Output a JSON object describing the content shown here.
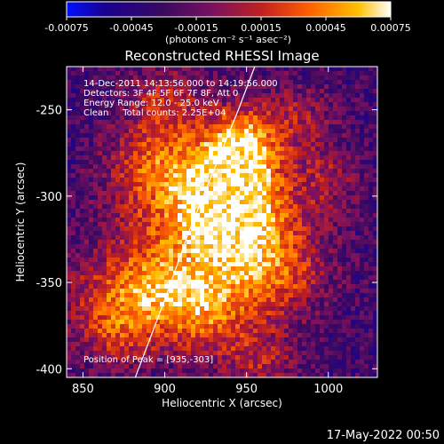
{
  "colorbar": {
    "tick_labels": [
      "-0.00075",
      "-0.00045",
      "-0.00015",
      "0.00015",
      "0.00045",
      "0.00075"
    ],
    "unit_label": "(photons cm⁻² s⁻¹ asec⁻²)",
    "range": [
      -0.00075,
      0.00075
    ]
  },
  "plot": {
    "title": "Reconstructed RHESSI Image",
    "info_lines": [
      "14-Dec-2011 14:13:56.000 to 14:19:56.000",
      "Detectors: 3F 4F 5F 6F 7F 8F, Att 0",
      "Energy Range: 12.0 - 25.0 keV",
      "Clean     Total counts: 2.25E+04"
    ],
    "peak_text": "Position of Peak = [935,-303]"
  },
  "footer": {
    "timestamp": "17-May-2022 00:50"
  },
  "chart_data": {
    "type": "heatmap",
    "title": "Reconstructed RHESSI Image",
    "xlabel": "Heliocentric X (arcsec)",
    "ylabel": "Heliocentric Y (arcsec)",
    "xlim": [
      840,
      1030
    ],
    "ylim": [
      -405,
      -225
    ],
    "x_ticks": [
      850,
      900,
      950,
      1000
    ],
    "x_tick_labels": [
      "850",
      "900",
      "950",
      "1000"
    ],
    "y_ticks": [
      -250,
      -300,
      -350,
      -400
    ],
    "y_tick_labels": [
      "-250",
      "-300",
      "-350",
      "-400"
    ],
    "peak": [
      935,
      -303
    ],
    "colormap": [
      "#0000ff",
      "#2a0060",
      "#5a1090",
      "#a02050",
      "#e03010",
      "#ff7000",
      "#ffb800",
      "#ffffff"
    ],
    "limb_curve": [
      [
        882,
        -405
      ],
      [
        900,
        -360
      ],
      [
        915,
        -320
      ],
      [
        930,
        -285
      ],
      [
        945,
        -250
      ],
      [
        955,
        -225
      ]
    ],
    "sources": [
      {
        "x": 937,
        "y": -300,
        "sx": 16,
        "sy": 22,
        "amp": 1.0
      },
      {
        "x": 948,
        "y": -272,
        "sx": 14,
        "sy": 16,
        "amp": 0.75
      },
      {
        "x": 910,
        "y": -315,
        "sx": 28,
        "sy": 30,
        "amp": 0.65
      },
      {
        "x": 960,
        "y": -315,
        "sx": 22,
        "sy": 28,
        "amp": 0.55
      },
      {
        "x": 895,
        "y": -280,
        "sx": 20,
        "sy": 16,
        "amp": 0.45
      },
      {
        "x": 885,
        "y": -355,
        "sx": 30,
        "sy": 16,
        "amp": 0.6
      },
      {
        "x": 925,
        "y": -370,
        "sx": 22,
        "sy": 18,
        "amp": 0.55
      },
      {
        "x": 970,
        "y": -345,
        "sx": 22,
        "sy": 18,
        "amp": 0.4
      },
      {
        "x": 870,
        "y": -380,
        "sx": 18,
        "sy": 14,
        "amp": 0.45
      },
      {
        "x": 980,
        "y": -255,
        "sx": 16,
        "sy": 14,
        "amp": 0.35
      },
      {
        "x": 900,
        "y": -245,
        "sx": 18,
        "sy": 14,
        "amp": 0.4
      },
      {
        "x": 1000,
        "y": -290,
        "sx": 14,
        "sy": 14,
        "amp": 0.3
      },
      {
        "x": 960,
        "y": -395,
        "sx": 16,
        "sy": 12,
        "amp": 0.35
      }
    ]
  }
}
